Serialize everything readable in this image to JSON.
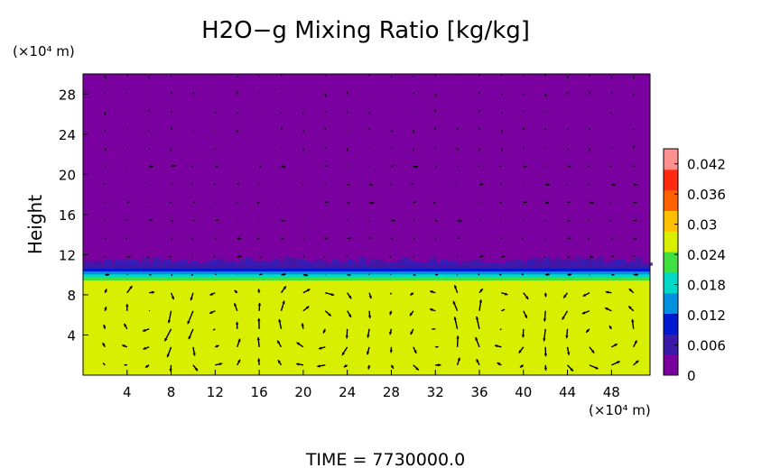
{
  "chart_data": {
    "type": "heatmap",
    "title": "H2O−g Mixing Ratio [kg/kg]",
    "ylabel": "Height",
    "x_unit_label": "(×10⁴ m)",
    "y_unit_label": "(×10⁴ m)",
    "time_label": "TIME  =  7730000.0",
    "xlim": [
      0,
      51.5
    ],
    "ylim": [
      0,
      30
    ],
    "x_ticks": [
      4,
      8,
      12,
      16,
      20,
      24,
      28,
      32,
      36,
      40,
      44,
      48
    ],
    "y_ticks": [
      4,
      8,
      12,
      16,
      20,
      24,
      28
    ],
    "colorbar": {
      "range": [
        0,
        0.045
      ],
      "ticks": [
        0,
        0.006,
        0.012,
        0.018,
        0.024,
        0.03,
        0.036,
        0.042
      ],
      "tick_labels": [
        "0",
        "0.006",
        "0.012",
        "0.018",
        "0.024",
        "0.03",
        "0.036",
        "0.042"
      ],
      "colors": [
        "#7a00a0",
        "#3a1aa8",
        "#0018d0",
        "#0090e0",
        "#00d8c8",
        "#40e040",
        "#d8f000",
        "#ffc000",
        "#ff6000",
        "#ff2a10",
        "#ff9090"
      ]
    },
    "field": {
      "upper_layer_value": 0.0,
      "lower_layer_value": 0.028,
      "interface_height": 10,
      "upper_color": "#7a00a0",
      "lower_color": "#d8f000"
    },
    "vectors": {
      "x_spacing": 2,
      "y_spacing": 1.8,
      "description": "wind velocity field"
    }
  }
}
